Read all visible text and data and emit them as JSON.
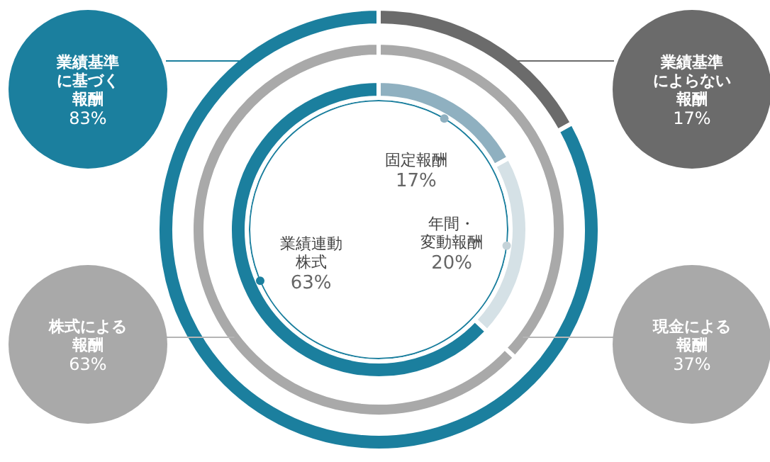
{
  "chart_data": [
    {
      "type": "donut",
      "categories": [
        "業績基準によらない報酬",
        "業績基準に基づく報酬"
      ],
      "values": [
        17,
        83
      ],
      "colors": [
        "#6b6b6b",
        "#1b7f9e"
      ],
      "value_labels": [
        "17%",
        "83%"
      ]
    },
    {
      "type": "donut",
      "categories": [
        "現金による報酬",
        "株式による報酬"
      ],
      "values": [
        37,
        63
      ],
      "colors": [
        "#a9a9a9",
        "#a9a9a9"
      ],
      "value_labels": [
        "37%",
        "63%"
      ]
    },
    {
      "type": "donut",
      "categories": [
        "固定報酬",
        "年間・変動報酬",
        "業績連動株式"
      ],
      "values": [
        17,
        20,
        63
      ],
      "colors": [
        "#8fb0c0",
        "#d5e1e6",
        "#1b7f9e"
      ],
      "value_labels": [
        "17%",
        "20%",
        "63%"
      ]
    }
  ]
}
